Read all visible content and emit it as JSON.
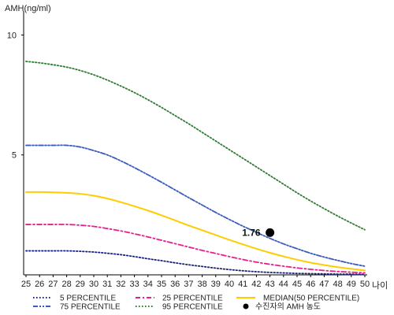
{
  "chart_data": {
    "type": "line",
    "ylabel": "AMH(ng/ml)",
    "xlabel": "나이",
    "x": [
      25,
      26,
      27,
      28,
      29,
      30,
      31,
      32,
      33,
      34,
      35,
      36,
      37,
      38,
      39,
      40,
      41,
      42,
      43,
      44,
      45,
      46,
      47,
      48,
      49,
      50
    ],
    "xlim": [
      25,
      50
    ],
    "ylim": [
      0,
      11
    ],
    "yticks": [
      5,
      10
    ],
    "grid": false,
    "legend_position": "bottom",
    "series": [
      {
        "name": "5 PERCENTILE",
        "color": "#1a237e",
        "style": "dotted",
        "values": [
          1.0,
          1.0,
          1.0,
          1.0,
          0.98,
          0.95,
          0.9,
          0.84,
          0.76,
          0.67,
          0.59,
          0.5,
          0.42,
          0.35,
          0.28,
          0.22,
          0.17,
          0.13,
          0.1,
          0.08,
          0.06,
          0.05,
          0.04,
          0.03,
          0.03,
          0.02
        ]
      },
      {
        "name": "25 PERCENTILE",
        "color": "#e91e8c",
        "style": "dashdot",
        "values": [
          2.1,
          2.1,
          2.1,
          2.1,
          2.07,
          2.02,
          1.93,
          1.83,
          1.71,
          1.58,
          1.44,
          1.3,
          1.16,
          1.02,
          0.89,
          0.76,
          0.64,
          0.53,
          0.44,
          0.36,
          0.29,
          0.23,
          0.18,
          0.14,
          0.11,
          0.08
        ]
      },
      {
        "name": "MEDIAN(50 PERCENTILE)",
        "color": "#ffcc00",
        "style": "solid",
        "values": [
          3.45,
          3.45,
          3.44,
          3.42,
          3.38,
          3.3,
          3.18,
          3.03,
          2.86,
          2.68,
          2.48,
          2.27,
          2.06,
          1.86,
          1.66,
          1.46,
          1.27,
          1.09,
          0.92,
          0.77,
          0.63,
          0.51,
          0.41,
          0.32,
          0.25,
          0.18
        ]
      },
      {
        "name": "75 PERCENTILE",
        "color": "#3b5bbd",
        "style": "dashdotdot",
        "values": [
          5.4,
          5.4,
          5.4,
          5.4,
          5.33,
          5.18,
          5.0,
          4.75,
          4.47,
          4.17,
          3.86,
          3.54,
          3.22,
          2.91,
          2.6,
          2.31,
          2.03,
          1.77,
          1.52,
          1.29,
          1.09,
          0.9,
          0.74,
          0.6,
          0.47,
          0.36
        ]
      },
      {
        "name": "95 PERCENTILE",
        "color": "#2e7d32",
        "style": "dotted",
        "values": [
          8.9,
          8.84,
          8.76,
          8.66,
          8.52,
          8.34,
          8.12,
          7.87,
          7.6,
          7.3,
          6.98,
          6.64,
          6.3,
          5.94,
          5.58,
          5.22,
          4.86,
          4.5,
          4.14,
          3.78,
          3.42,
          3.08,
          2.76,
          2.45,
          2.16,
          1.88
        ]
      }
    ],
    "annotations": [
      {
        "name": "수진자의 AMH 농도",
        "x": 43,
        "y": 1.76,
        "label": "1.76",
        "color": "#000000"
      }
    ]
  }
}
